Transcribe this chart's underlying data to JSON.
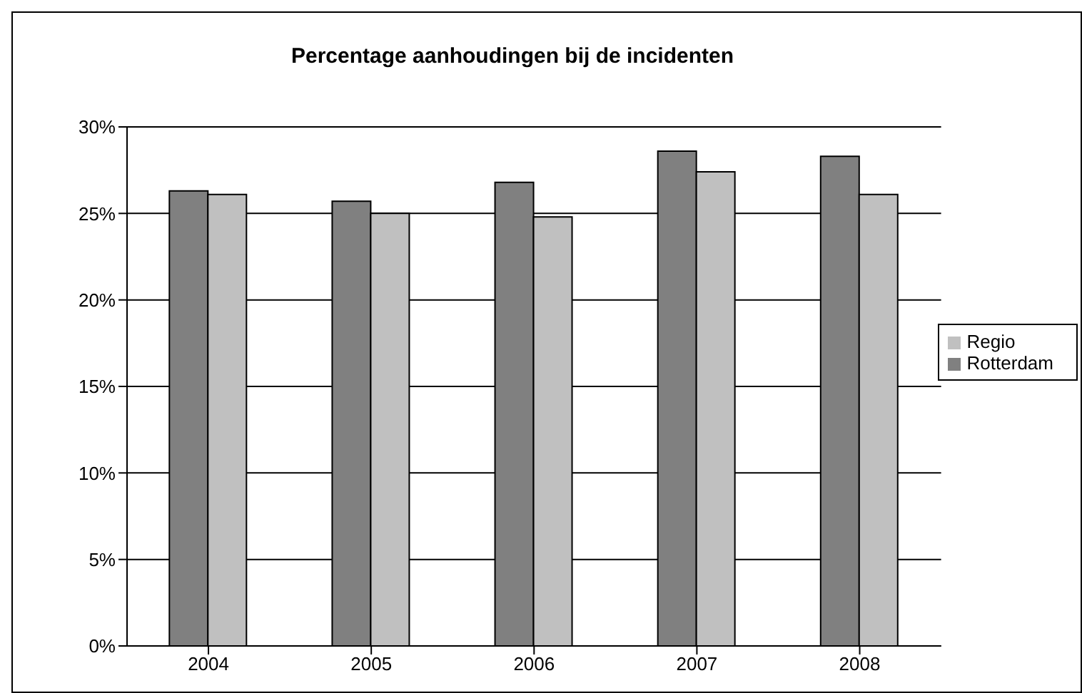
{
  "chart_data": {
    "type": "bar",
    "title": "Percentage aanhoudingen bij de incidenten",
    "categories": [
      "2004",
      "2005",
      "2006",
      "2007",
      "2008"
    ],
    "series": [
      {
        "name": "Rotterdam",
        "color": "#808080",
        "values": [
          26.3,
          25.7,
          26.8,
          28.6,
          28.3
        ]
      },
      {
        "name": "Regio",
        "color": "#c0c0c0",
        "values": [
          26.1,
          25.0,
          24.8,
          27.4,
          26.1
        ]
      }
    ],
    "ylim": [
      0,
      30
    ],
    "yticks": [
      {
        "value": 0,
        "label": "0%"
      },
      {
        "value": 5,
        "label": "5%"
      },
      {
        "value": 10,
        "label": "10%"
      },
      {
        "value": 15,
        "label": "15%"
      },
      {
        "value": 20,
        "label": "20%"
      },
      {
        "value": 25,
        "label": "25%"
      },
      {
        "value": 30,
        "label": "30%"
      }
    ],
    "grid": "y",
    "legend": "right"
  }
}
